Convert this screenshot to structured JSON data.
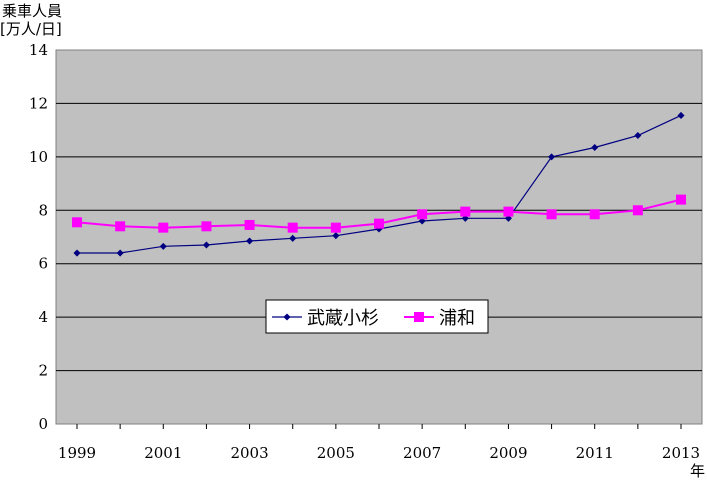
{
  "chart_data": {
    "type": "line",
    "ylabel_line1": "乗車人員",
    "ylabel_line2": "[万人/日]",
    "xlabel": "年",
    "ylim": [
      0,
      14
    ],
    "yticks": [
      0,
      2,
      4,
      6,
      8,
      10,
      12,
      14
    ],
    "x": [
      1999,
      2000,
      2001,
      2002,
      2003,
      2004,
      2005,
      2006,
      2007,
      2008,
      2009,
      2010,
      2011,
      2012,
      2013
    ],
    "xtick_labels": [
      "1999",
      "2001",
      "2003",
      "2005",
      "2007",
      "2009",
      "2011",
      "2013"
    ],
    "grid": true,
    "legend_position": "center",
    "series": [
      {
        "name": "武蔵小杉",
        "color": "#000080",
        "marker": "diamond",
        "values": [
          6.4,
          6.4,
          6.65,
          6.7,
          6.85,
          6.95,
          7.05,
          7.3,
          7.6,
          7.7,
          7.7,
          10.0,
          10.35,
          10.8,
          11.55
        ]
      },
      {
        "name": "浦和",
        "color": "#ff00ff",
        "marker": "square",
        "values": [
          7.55,
          7.4,
          7.35,
          7.4,
          7.45,
          7.35,
          7.35,
          7.5,
          7.85,
          7.95,
          7.95,
          7.85,
          7.85,
          8.0,
          8.4
        ]
      }
    ]
  }
}
